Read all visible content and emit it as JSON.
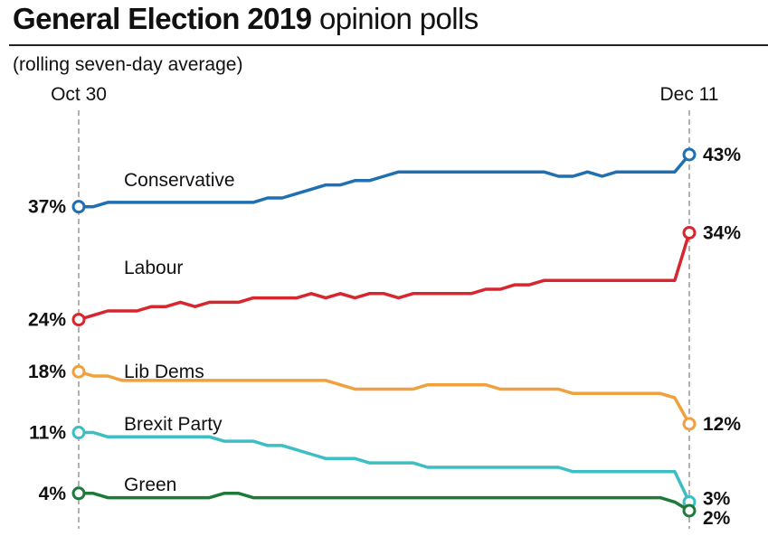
{
  "header": {
    "title_bold": "General Election 2019",
    "title_light": "opinion polls",
    "subtitle": "(rolling seven-day average)"
  },
  "chart_data": {
    "type": "line",
    "title": "General Election 2019 opinion polls",
    "subtitle": "(rolling seven-day average)",
    "x": [
      "Oct 30",
      "Oct 31",
      "Nov 1",
      "Nov 2",
      "Nov 3",
      "Nov 4",
      "Nov 5",
      "Nov 6",
      "Nov 7",
      "Nov 8",
      "Nov 9",
      "Nov 10",
      "Nov 11",
      "Nov 12",
      "Nov 13",
      "Nov 14",
      "Nov 15",
      "Nov 16",
      "Nov 17",
      "Nov 18",
      "Nov 19",
      "Nov 20",
      "Nov 21",
      "Nov 22",
      "Nov 23",
      "Nov 24",
      "Nov 25",
      "Nov 26",
      "Nov 27",
      "Nov 28",
      "Nov 29",
      "Nov 30",
      "Dec 1",
      "Dec 2",
      "Dec 3",
      "Dec 4",
      "Dec 5",
      "Dec 6",
      "Dec 7",
      "Dec 8",
      "Dec 9",
      "Dec 10",
      "Dec 11"
    ],
    "x_tick_labels": [
      "Oct 30",
      "Dec 11"
    ],
    "ylim": [
      0,
      48
    ],
    "grid": false,
    "legend": "inline labels",
    "series": [
      {
        "name": "Conservative",
        "color": "#1f6fb2",
        "start_label": "37%",
        "end_label": "43%",
        "values": [
          37,
          37,
          37.5,
          37.5,
          37.5,
          37.5,
          37.5,
          37.5,
          37.5,
          37.5,
          37.5,
          37.5,
          37.5,
          38,
          38,
          38.5,
          39,
          39.5,
          39.5,
          40,
          40,
          40.5,
          41,
          41,
          41,
          41,
          41,
          41,
          41,
          41,
          41,
          41,
          41,
          40.5,
          40.5,
          41,
          40.5,
          41,
          41,
          41,
          41,
          41,
          43
        ]
      },
      {
        "name": "Labour",
        "color": "#d7262e",
        "start_label": "24%",
        "end_label": "34%",
        "values": [
          24,
          24.5,
          25,
          25,
          25,
          25.5,
          25.5,
          26,
          25.5,
          26,
          26,
          26,
          26.5,
          26.5,
          26.5,
          26.5,
          27,
          26.5,
          27,
          26.5,
          27,
          27,
          26.5,
          27,
          27,
          27,
          27,
          27,
          27.5,
          27.5,
          28,
          28,
          28.5,
          28.5,
          28.5,
          28.5,
          28.5,
          28.5,
          28.5,
          28.5,
          28.5,
          28.5,
          34
        ]
      },
      {
        "name": "Lib Dems",
        "color": "#f0a03c",
        "start_label": "18%",
        "end_label": "12%",
        "values": [
          18,
          17.5,
          17.5,
          17,
          17,
          17,
          17,
          17,
          17,
          17,
          17,
          17,
          17,
          17,
          17,
          17,
          17,
          17,
          16.5,
          16,
          16,
          16,
          16,
          16,
          16.5,
          16.5,
          16.5,
          16.5,
          16.5,
          16,
          16,
          16,
          16,
          16,
          15.5,
          15.5,
          15.5,
          15.5,
          15.5,
          15.5,
          15.5,
          15,
          12
        ]
      },
      {
        "name": "Brexit Party",
        "color": "#3dbec4",
        "start_label": "11%",
        "end_label": "3%",
        "values": [
          11,
          11,
          10.5,
          10.5,
          10.5,
          10.5,
          10.5,
          10.5,
          10.5,
          10.5,
          10,
          10,
          10,
          9.5,
          9.5,
          9,
          8.5,
          8,
          8,
          8,
          7.5,
          7.5,
          7.5,
          7.5,
          7,
          7,
          7,
          7,
          7,
          7,
          7,
          7,
          7,
          7,
          6.5,
          6.5,
          6.5,
          6.5,
          6.5,
          6.5,
          6.5,
          6.5,
          3
        ]
      },
      {
        "name": "Green",
        "color": "#1f7a3a",
        "start_label": "4%",
        "end_label": "2%",
        "values": [
          4,
          4,
          3.5,
          3.5,
          3.5,
          3.5,
          3.5,
          3.5,
          3.5,
          3.5,
          4,
          4,
          3.5,
          3.5,
          3.5,
          3.5,
          3.5,
          3.5,
          3.5,
          3.5,
          3.5,
          3.5,
          3.5,
          3.5,
          3.5,
          3.5,
          3.5,
          3.5,
          3.5,
          3.5,
          3.5,
          3.5,
          3.5,
          3.5,
          3.5,
          3.5,
          3.5,
          3.5,
          3.5,
          3.5,
          3.5,
          3,
          2
        ]
      }
    ]
  }
}
